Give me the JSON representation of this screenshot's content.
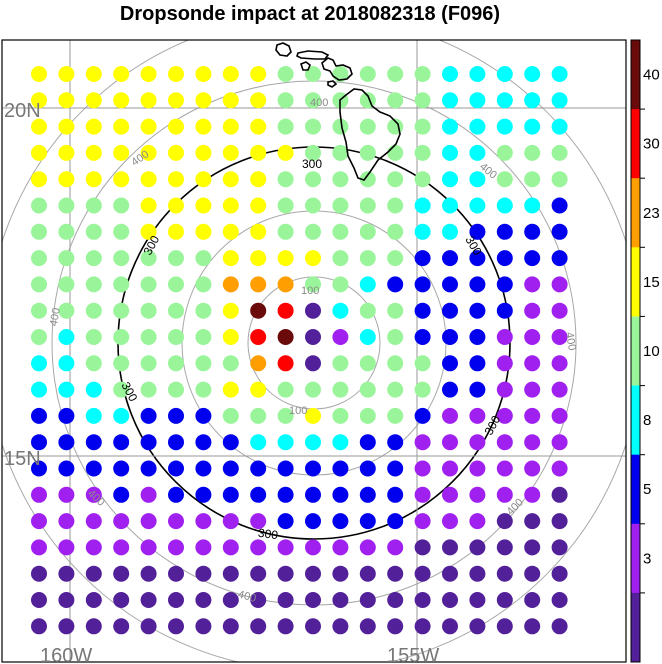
{
  "title": "Dropsonde impact at 2018082318 (F096)",
  "lat_labels": [
    "20N",
    "15N"
  ],
  "lon_labels": [
    "160W",
    "155W"
  ],
  "ring_labels": {
    "r100": [
      "100",
      "100"
    ],
    "r300": [
      "300",
      "300",
      "300",
      "300",
      "300",
      "300"
    ],
    "r400": [
      "400",
      "400",
      "400",
      "400",
      "400",
      "400",
      "400",
      "400"
    ]
  },
  "colorbar": {
    "labels": [
      "40",
      "30",
      "23",
      "15",
      "10",
      "8",
      "5",
      "3"
    ],
    "colors": [
      "#6b0a0a",
      "#ff0000",
      "#ff9e00",
      "#ffff00",
      "#9af59a",
      "#00ffff",
      "#0000ee",
      "#a020f0",
      "#52219a"
    ]
  },
  "chart_data": {
    "type": "heatmap",
    "title": "Dropsonde impact at 2018082318 (F096)",
    "levels": [
      3,
      5,
      8,
      10,
      15,
      23,
      30,
      40
    ],
    "grid_rows_code": [
      "33333333344444455555",
      "33333333344444455555",
      "33333333344444455555",
      "33333333334444455444",
      "33333333344444455444",
      "44443333344444555556",
      "44443333344444556666",
      "44444443333444666666",
      "44444442224456666677",
      "44444443018544666677",
      "45444443108754666777",
      "55444444218444466777",
      "55544443344444466777",
      "66556664443444677777",
      "66666666555566777777",
      "66666666666666777777",
      "77767666666666777778",
      "77777777766666777888",
      "77777777777777888888",
      "88888888888888888888",
      "88888888888888888888",
      "88888888888888888888"
    ]
  }
}
